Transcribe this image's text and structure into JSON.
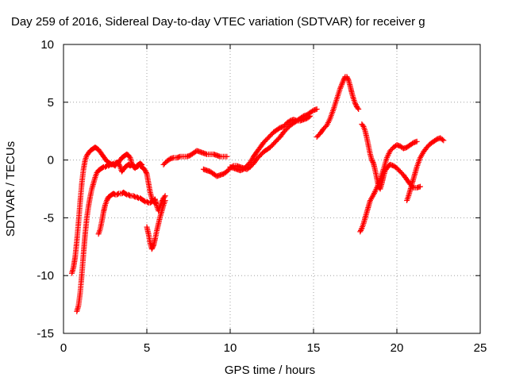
{
  "chart_data": {
    "type": "scatter",
    "title": "Day 259 of 2016, Sidereal Day-to-day VTEC variation (SDTVAR) for receiver g",
    "xlabel": "GPS time / hours",
    "ylabel": "SDTVAR / TECUs",
    "xlim": [
      0,
      25
    ],
    "ylim": [
      -15,
      10
    ],
    "xticks": [
      "0",
      "5",
      "10",
      "15",
      "20",
      "25"
    ],
    "yticks": [
      "-15",
      "-10",
      "-5",
      "0",
      "5",
      "10"
    ],
    "grid": true,
    "legend": "none",
    "marker": "plus",
    "series": [
      {
        "color": "#ff0000",
        "segments": [
          {
            "x": [
              0.5,
              0.6,
              0.7,
              0.8,
              0.9,
              1.0,
              1.1,
              1.2,
              1.3,
              1.4,
              1.5,
              1.6,
              1.7,
              1.8,
              1.9,
              2.0,
              2.1,
              2.2,
              2.3,
              2.4,
              2.5,
              2.6,
              2.7,
              2.8,
              2.9,
              3.0,
              3.1,
              3.2,
              3.3,
              3.4,
              3.5,
              3.6,
              3.7,
              3.8,
              3.9,
              4.0,
              4.1,
              4.2,
              4.3,
              4.4,
              4.5,
              4.6,
              4.7
            ],
            "y": [
              -9.8,
              -9.3,
              -8.4,
              -7.0,
              -5.4,
              -3.6,
              -2.0,
              -0.8,
              0.0,
              0.4,
              0.6,
              0.8,
              0.9,
              1.0,
              1.1,
              1.0,
              0.9,
              0.7,
              0.5,
              0.3,
              0.1,
              -0.1,
              -0.2,
              -0.3,
              -0.4,
              -0.4,
              -0.5,
              -0.3,
              -0.2,
              0.0,
              0.2,
              0.3,
              0.4,
              0.5,
              0.4,
              0.2,
              -0.3,
              -0.6,
              -0.7,
              -0.5,
              -0.4,
              -0.3,
              -0.4
            ]
          },
          {
            "x": [
              0.8,
              0.9,
              1.0,
              1.1,
              1.2,
              1.3,
              1.4,
              1.5,
              1.6,
              1.7,
              1.8,
              1.9,
              2.0,
              2.1,
              2.2,
              2.3,
              2.4,
              2.5,
              2.6,
              2.7,
              2.8,
              2.9,
              3.0,
              3.1,
              3.2,
              3.3,
              3.4,
              3.5,
              3.6,
              3.7,
              3.8,
              3.9,
              4.0,
              4.1,
              4.2,
              4.3,
              4.4,
              4.5,
              4.6,
              4.7,
              4.8,
              4.9,
              5.0,
              5.1,
              5.2,
              5.3,
              5.4,
              5.5
            ],
            "y": [
              -13.1,
              -12.6,
              -11.5,
              -9.9,
              -8.1,
              -6.4,
              -5.0,
              -4.0,
              -3.2,
              -2.5,
              -2.0,
              -1.5,
              -1.1,
              -0.9,
              -0.8,
              -0.7,
              -0.6,
              -0.6,
              -0.5,
              -0.5,
              -0.4,
              -0.4,
              -0.3,
              -0.3,
              -0.2,
              -0.3,
              -0.6,
              -1.0,
              -0.8,
              -0.6,
              -0.5,
              -0.4,
              -0.5,
              -0.4,
              -0.5,
              -0.6,
              -0.6,
              -0.5,
              -0.5,
              -0.6,
              -0.7,
              -0.9,
              -1.2,
              -2.0,
              -2.8,
              -3.3,
              -3.6,
              -3.7
            ]
          },
          {
            "x": [
              2.1,
              2.2,
              2.3,
              2.4,
              2.5,
              2.6,
              2.7,
              2.8,
              2.9,
              3.0,
              3.1,
              3.2,
              3.3,
              3.4,
              3.5,
              3.6,
              3.7,
              3.8,
              3.9,
              4.0,
              4.1,
              4.2,
              4.3,
              4.4,
              4.5,
              4.6,
              4.7,
              4.8,
              4.9,
              5.0,
              5.1,
              5.2,
              5.3,
              5.4,
              5.5,
              5.6,
              5.7,
              5.8,
              5.9,
              6.0,
              6.1
            ],
            "y": [
              -6.4,
              -6.0,
              -5.3,
              -4.5,
              -3.9,
              -3.5,
              -3.2,
              -3.1,
              -3.0,
              -2.9,
              -3.0,
              -3.0,
              -2.9,
              -2.9,
              -2.9,
              -2.8,
              -2.9,
              -3.0,
              -3.0,
              -3.1,
              -3.1,
              -3.1,
              -3.2,
              -3.2,
              -3.3,
              -3.3,
              -3.4,
              -3.5,
              -3.6,
              -3.6,
              -3.7,
              -3.7,
              -3.6,
              -3.5,
              -3.4,
              -4.0,
              -4.4,
              -4.0,
              -3.6,
              -3.3,
              -3.1
            ]
          },
          {
            "x": [
              5.0,
              5.1,
              5.2,
              5.3,
              5.4,
              5.5,
              5.6,
              5.7,
              5.8,
              5.9,
              6.0,
              6.1
            ],
            "y": [
              -5.8,
              -6.4,
              -7.2,
              -7.7,
              -7.4,
              -6.8,
              -6.1,
              -5.5,
              -4.9,
              -4.4,
              -3.9,
              -3.5
            ]
          },
          {
            "x": [
              6.0,
              6.2,
              6.4,
              6.6,
              6.8,
              7.0,
              7.2,
              7.4,
              7.6,
              7.8,
              8.0,
              8.2,
              8.4,
              8.6,
              8.8,
              9.0,
              9.2,
              9.4,
              9.6,
              9.8
            ],
            "y": [
              -0.4,
              -0.1,
              0.1,
              0.2,
              0.2,
              0.3,
              0.3,
              0.3,
              0.4,
              0.6,
              0.8,
              0.7,
              0.6,
              0.5,
              0.5,
              0.5,
              0.4,
              0.3,
              0.3,
              0.3
            ]
          },
          {
            "x": [
              8.4,
              8.6,
              8.8,
              9.0,
              9.2,
              9.4,
              9.6,
              9.8,
              10.0,
              10.2,
              10.4,
              10.6,
              10.8,
              11.0,
              11.2,
              11.4,
              11.6,
              11.8,
              12.0,
              12.2,
              12.4,
              12.6,
              12.8,
              13.0,
              13.2,
              13.4,
              13.6,
              13.8,
              14.0,
              14.2,
              14.4,
              14.6,
              14.8,
              15.0,
              15.2
            ],
            "y": [
              -0.8,
              -0.9,
              -1.0,
              -1.2,
              -1.4,
              -1.3,
              -1.2,
              -1.0,
              -0.7,
              -0.5,
              -0.5,
              -0.6,
              -0.7,
              -0.8,
              -0.6,
              -0.3,
              0.1,
              0.4,
              0.7,
              0.9,
              1.1,
              1.4,
              1.7,
              2.0,
              2.4,
              2.7,
              3.0,
              3.2,
              3.4,
              3.6,
              3.8,
              3.9,
              4.1,
              4.3,
              4.4
            ]
          },
          {
            "x": [
              10.0,
              10.2,
              10.4,
              10.6,
              10.8,
              11.0,
              11.2,
              11.4,
              11.6,
              11.8,
              12.0,
              12.2,
              12.4,
              12.6,
              12.8,
              13.0,
              13.2,
              13.4,
              13.6,
              13.8,
              14.0,
              14.2,
              14.4,
              14.6,
              14.8
            ],
            "y": [
              -0.6,
              -0.7,
              -0.8,
              -0.9,
              -0.8,
              -0.5,
              -0.2,
              0.3,
              0.7,
              1.1,
              1.5,
              1.8,
              2.1,
              2.4,
              2.6,
              2.8,
              2.9,
              3.2,
              3.4,
              3.5,
              3.4,
              3.4,
              3.5,
              3.6,
              3.8
            ]
          },
          {
            "x": [
              15.2,
              15.4,
              15.6,
              15.8,
              16.0,
              16.2,
              16.4,
              16.6,
              16.8,
              16.9,
              17.0,
              17.1,
              17.2,
              17.3,
              17.4,
              17.5,
              17.6,
              17.7
            ],
            "y": [
              2.0,
              2.3,
              2.7,
              3.0,
              3.6,
              4.4,
              5.3,
              6.2,
              6.9,
              7.2,
              7.2,
              6.9,
              6.4,
              5.8,
              5.3,
              4.9,
              4.6,
              4.4
            ]
          },
          {
            "x": [
              17.9,
              18.0,
              18.1,
              18.2,
              18.3,
              18.4,
              18.5,
              18.6,
              18.7,
              18.8,
              18.9,
              19.0,
              19.1,
              19.2,
              19.3,
              19.4,
              19.5,
              19.6,
              19.8,
              20.0,
              20.2,
              20.4,
              20.6,
              20.8,
              21.0,
              21.2,
              21.4
            ],
            "y": [
              3.1,
              2.9,
              2.5,
              1.9,
              1.2,
              0.5,
              0.0,
              -0.3,
              -0.9,
              -1.6,
              -2.3,
              -2.5,
              -2.0,
              -1.4,
              -0.9,
              -0.7,
              -0.5,
              -0.4,
              -0.5,
              -0.7,
              -1.0,
              -1.3,
              -1.7,
              -2.1,
              -2.4,
              -2.4,
              -2.3
            ]
          },
          {
            "x": [
              17.8,
              17.9,
              18.0,
              18.1,
              18.2,
              18.3,
              18.4,
              18.6,
              18.8,
              19.0,
              19.2,
              19.4,
              19.6,
              19.8,
              20.0,
              20.2,
              20.4,
              20.6,
              20.8,
              21.0,
              21.2
            ],
            "y": [
              -6.2,
              -5.9,
              -5.5,
              -5.0,
              -4.5,
              -4.0,
              -3.5,
              -3.0,
              -2.4,
              -1.7,
              -0.8,
              0.2,
              0.8,
              1.1,
              1.3,
              1.2,
              1.0,
              1.1,
              1.3,
              1.5,
              1.6
            ]
          },
          {
            "x": [
              20.6,
              20.7,
              20.8,
              20.9,
              21.0,
              21.1,
              21.2,
              21.3,
              21.4,
              21.6,
              21.8,
              22.0,
              22.2,
              22.4,
              22.6,
              22.8
            ],
            "y": [
              -3.5,
              -3.1,
              -2.6,
              -2.1,
              -1.6,
              -1.1,
              -0.6,
              -0.2,
              0.2,
              0.7,
              1.1,
              1.4,
              1.6,
              1.8,
              1.9,
              1.7
            ]
          }
        ]
      }
    ]
  }
}
